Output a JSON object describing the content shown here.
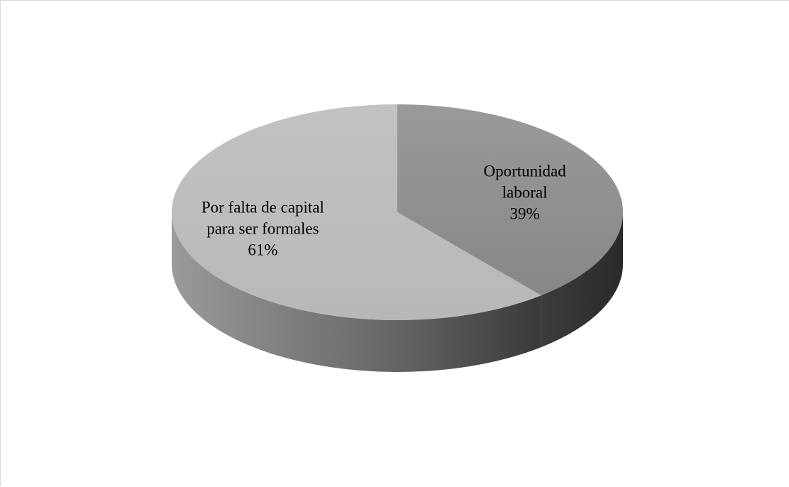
{
  "chart_data": {
    "type": "pie",
    "title": "",
    "slices": [
      {
        "label_lines": [
          "Oportunidad",
          "laboral"
        ],
        "value": 39,
        "value_label": "39%",
        "top_color": "#8e8e8e",
        "side_color": "#3f3f3f"
      },
      {
        "label_lines": [
          "Por falta de capital",
          "para ser formales"
        ],
        "value": 61,
        "value_label": "61%",
        "top_color": "#bdbdbd",
        "side_color": "#6f6f6f"
      }
    ],
    "unit": "%",
    "legend": "none",
    "style": "3d-pie"
  }
}
